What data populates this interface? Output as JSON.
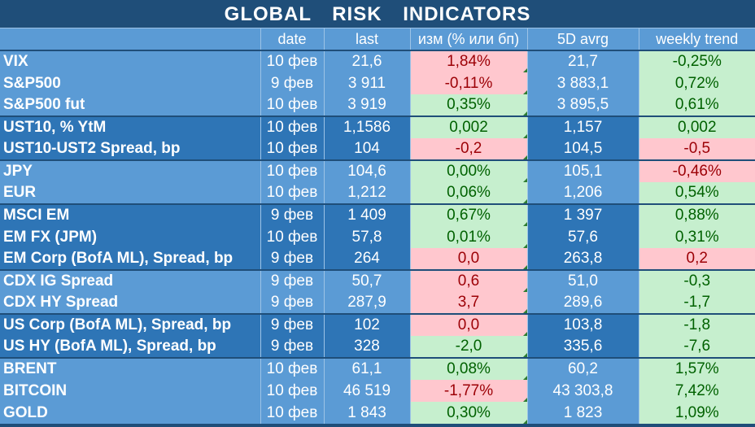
{
  "title": "GLOBAL   RISK   INDICATORS",
  "headers": [
    "",
    "date",
    "last",
    "изм (% или бп)",
    "5D avrg",
    "weekly trend"
  ],
  "rows": [
    {
      "name": "VIX",
      "date": "10 фев",
      "last": "21,6",
      "chg": "1,84%",
      "chg_sign": "neg",
      "avg": "21,7",
      "trend": "-0,25%",
      "trend_sign": "pos",
      "shade": "light",
      "group_start": true
    },
    {
      "name": "S&P500",
      "date": "9 фев",
      "last": "3 911",
      "chg": "-0,11%",
      "chg_sign": "neg",
      "avg": "3 883,1",
      "trend": "0,72%",
      "trend_sign": "pos",
      "shade": "light",
      "group_start": false
    },
    {
      "name": "S&P500 fut",
      "date": "10 фев",
      "last": "3 919",
      "chg": "0,35%",
      "chg_sign": "pos",
      "avg": "3 895,5",
      "trend": "0,61%",
      "trend_sign": "pos",
      "shade": "light",
      "group_start": false
    },
    {
      "name": "UST10, % YtM",
      "date": "10 фев",
      "last": "1,1586",
      "chg": "0,002",
      "chg_sign": "pos",
      "avg": "1,157",
      "trend": "0,002",
      "trend_sign": "pos",
      "shade": "dark",
      "group_start": true
    },
    {
      "name": "UST10-UST2 Spread, bp",
      "date": "10 фев",
      "last": "104",
      "chg": "-0,2",
      "chg_sign": "neg",
      "avg": "104,5",
      "trend": "-0,5",
      "trend_sign": "neg",
      "shade": "dark",
      "group_start": false
    },
    {
      "name": "JPY",
      "date": "10 фев",
      "last": "104,6",
      "chg": "0,00%",
      "chg_sign": "pos",
      "avg": "105,1",
      "trend": "-0,46%",
      "trend_sign": "neg",
      "shade": "light",
      "group_start": true
    },
    {
      "name": "EUR",
      "date": "10 фев",
      "last": "1,212",
      "chg": "0,06%",
      "chg_sign": "pos",
      "avg": "1,206",
      "trend": "0,54%",
      "trend_sign": "pos",
      "shade": "light",
      "group_start": false
    },
    {
      "name": "MSCI EM",
      "date": "9 фев",
      "last": "1 409",
      "chg": "0,67%",
      "chg_sign": "pos",
      "avg": "1 397",
      "trend": "0,88%",
      "trend_sign": "pos",
      "shade": "dark",
      "group_start": true
    },
    {
      "name": "EM FX (JPM)",
      "date": "10 фев",
      "last": "57,8",
      "chg": "0,01%",
      "chg_sign": "pos",
      "avg": "57,6",
      "trend": "0,31%",
      "trend_sign": "pos",
      "shade": "dark",
      "group_start": false
    },
    {
      "name": "EM Corp (BofA ML), Spread, bp",
      "date": "9 фев",
      "last": "264",
      "chg": "0,0",
      "chg_sign": "neg",
      "avg": "263,8",
      "trend": "0,2",
      "trend_sign": "neg",
      "shade": "dark",
      "group_start": false
    },
    {
      "name": "CDX IG Spread",
      "date": "9 фев",
      "last": "50,7",
      "chg": "0,6",
      "chg_sign": "neg",
      "avg": "51,0",
      "trend": "-0,3",
      "trend_sign": "pos",
      "shade": "light",
      "group_start": true
    },
    {
      "name": "CDX HY Spread",
      "date": "9 фев",
      "last": "287,9",
      "chg": "3,7",
      "chg_sign": "neg",
      "avg": "289,6",
      "trend": "-1,7",
      "trend_sign": "pos",
      "shade": "light",
      "group_start": false
    },
    {
      "name": "US Corp (BofA ML), Spread, bp",
      "date": "9 фев",
      "last": "102",
      "chg": "0,0",
      "chg_sign": "neg",
      "avg": "103,8",
      "trend": "-1,8",
      "trend_sign": "pos",
      "shade": "dark",
      "group_start": true
    },
    {
      "name": "US HY (BofA ML), Spread, bp",
      "date": "9 фев",
      "last": "328",
      "chg": "-2,0",
      "chg_sign": "pos",
      "avg": "335,6",
      "trend": "-7,6",
      "trend_sign": "pos",
      "shade": "dark",
      "group_start": false
    },
    {
      "name": "BRENT",
      "date": "10 фев",
      "last": "61,1",
      "chg": "0,08%",
      "chg_sign": "pos",
      "avg": "60,2",
      "trend": "1,57%",
      "trend_sign": "pos",
      "shade": "light",
      "group_start": true
    },
    {
      "name": "BITCOIN",
      "date": "10 фев",
      "last": "46 519",
      "chg": "-1,77%",
      "chg_sign": "neg",
      "avg": "43 303,8",
      "trend": "7,42%",
      "trend_sign": "pos",
      "shade": "light",
      "group_start": false
    },
    {
      "name": "GOLD",
      "date": "10 фев",
      "last": "1 843",
      "chg": "0,30%",
      "chg_sign": "pos",
      "avg": "1 823",
      "trend": "1,09%",
      "trend_sign": "pos",
      "shade": "light",
      "group_start": false
    }
  ],
  "colors": {
    "title_bg": "#1f4e79",
    "light_row": "#5b9bd5",
    "dark_row": "#2e75b6",
    "positive_fill": "#c6efce",
    "positive_text": "#006100",
    "negative_fill": "#ffc7ce",
    "negative_text": "#9c0006"
  }
}
